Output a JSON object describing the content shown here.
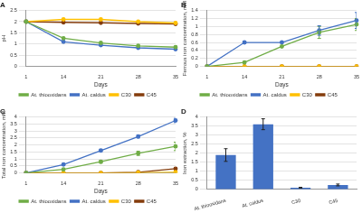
{
  "chart_data": [
    {
      "type": "line",
      "title": "A",
      "x_label": "Days",
      "y_label": "pH",
      "categories": [
        "1",
        "14",
        "21",
        "28",
        "35"
      ],
      "series": [
        {
          "name": "At. thiooxidans",
          "color": "#70ad47",
          "marker": "circle",
          "line_style": "solid",
          "values": [
            2.0,
            1.26,
            1.05,
            0.92,
            0.86
          ]
        },
        {
          "name": "At. caldus",
          "color": "#4472c4",
          "marker": "circle",
          "line_style": "solid",
          "values": [
            2.0,
            1.1,
            0.95,
            0.83,
            0.77
          ]
        },
        {
          "name": "C30",
          "color": "#ffc000",
          "marker": "circle",
          "line_style": "solid",
          "values": [
            2.0,
            2.1,
            2.1,
            2.0,
            1.94
          ]
        },
        {
          "name": "C45",
          "color": "#843c0c",
          "marker": "circle",
          "line_style": "solid",
          "values": [
            2.0,
            1.97,
            1.95,
            1.92,
            1.9
          ]
        }
      ],
      "ylim": [
        0,
        2.5
      ],
      "yticks": [
        0,
        0.5,
        1,
        1.5,
        2,
        2.5
      ],
      "grid": true,
      "legend": "bottom"
    },
    {
      "type": "line",
      "title": "B",
      "x_label": "Days",
      "y_label": "Ferrous iron concentration, mM",
      "categories": [
        "1",
        "14",
        "21",
        "28",
        "35"
      ],
      "series": [
        {
          "name": "At. thiooxidans",
          "color": "#70ad47",
          "marker": "circle",
          "line_style": "solid",
          "values": [
            0,
            0.1,
            0.5,
            0.85,
            1.05
          ],
          "errors": [
            null,
            null,
            null,
            0.15,
            0.15
          ]
        },
        {
          "name": "At. caldus",
          "color": "#4472c4",
          "marker": "circle",
          "line_style": "solid",
          "values": [
            0,
            0.6,
            0.6,
            0.9,
            1.15
          ],
          "errors": [
            null,
            0.03,
            null,
            0.12,
            0.2
          ]
        },
        {
          "name": "C30",
          "color": "#ffc000",
          "marker": "circle",
          "line_style": "solid",
          "values": [
            0,
            0,
            0,
            0,
            0
          ]
        },
        {
          "name": "C45",
          "color": "#843c0c",
          "marker": "circle",
          "line_style": "solid",
          "values": [
            0,
            0,
            0,
            0,
            0
          ]
        }
      ],
      "ylim": [
        0,
        1.4
      ],
      "yticks": [
        0,
        0.2,
        0.4,
        0.6,
        0.8,
        1,
        1.2,
        1.4
      ],
      "grid": true,
      "legend": "bottom"
    },
    {
      "type": "line",
      "title": "C",
      "x_label": "Days",
      "y_label": "Total iron concentration, mM",
      "categories": [
        "1",
        "14",
        "21",
        "28",
        "35"
      ],
      "series": [
        {
          "name": "At. thiooxidans",
          "color": "#70ad47",
          "marker": "circle",
          "line_style": "solid",
          "values": [
            0,
            0.25,
            0.8,
            1.4,
            1.9
          ],
          "errors": [
            null,
            null,
            0.1,
            0.15,
            0.3
          ]
        },
        {
          "name": "At. caldus",
          "color": "#4472c4",
          "marker": "circle",
          "line_style": "solid",
          "values": [
            0,
            0.6,
            1.6,
            2.6,
            3.75
          ],
          "errors": [
            null,
            0.05,
            0.08,
            0.1,
            0.15
          ]
        },
        {
          "name": "C30",
          "color": "#ffc000",
          "marker": "circle",
          "line_style": "solid",
          "values": [
            0,
            0,
            0,
            0.02,
            0.05
          ]
        },
        {
          "name": "C45",
          "color": "#843c0c",
          "marker": "circle",
          "line_style": "solid",
          "values": [
            0,
            0,
            0,
            0.05,
            0.3
          ]
        }
      ],
      "ylim": [
        0,
        4
      ],
      "yticks": [
        0,
        0.5,
        1,
        1.5,
        2,
        2.5,
        3,
        3.5,
        4
      ],
      "grid": true,
      "legend": "bottom"
    },
    {
      "type": "bar",
      "title": "D",
      "y_label": "Iron extraction, %",
      "categories": [
        "At. thiooxidans",
        "At. caldus",
        "C30",
        "C45"
      ],
      "values": [
        1.9,
        3.6,
        0.1,
        0.25
      ],
      "errors": [
        0.35,
        0.3,
        0.02,
        0.05
      ],
      "color": "#4472c4",
      "ylim": [
        0,
        4
      ],
      "yticks": [
        0,
        0.5,
        1,
        1.5,
        2,
        2.5,
        3,
        3.5,
        4
      ],
      "grid": true
    }
  ]
}
